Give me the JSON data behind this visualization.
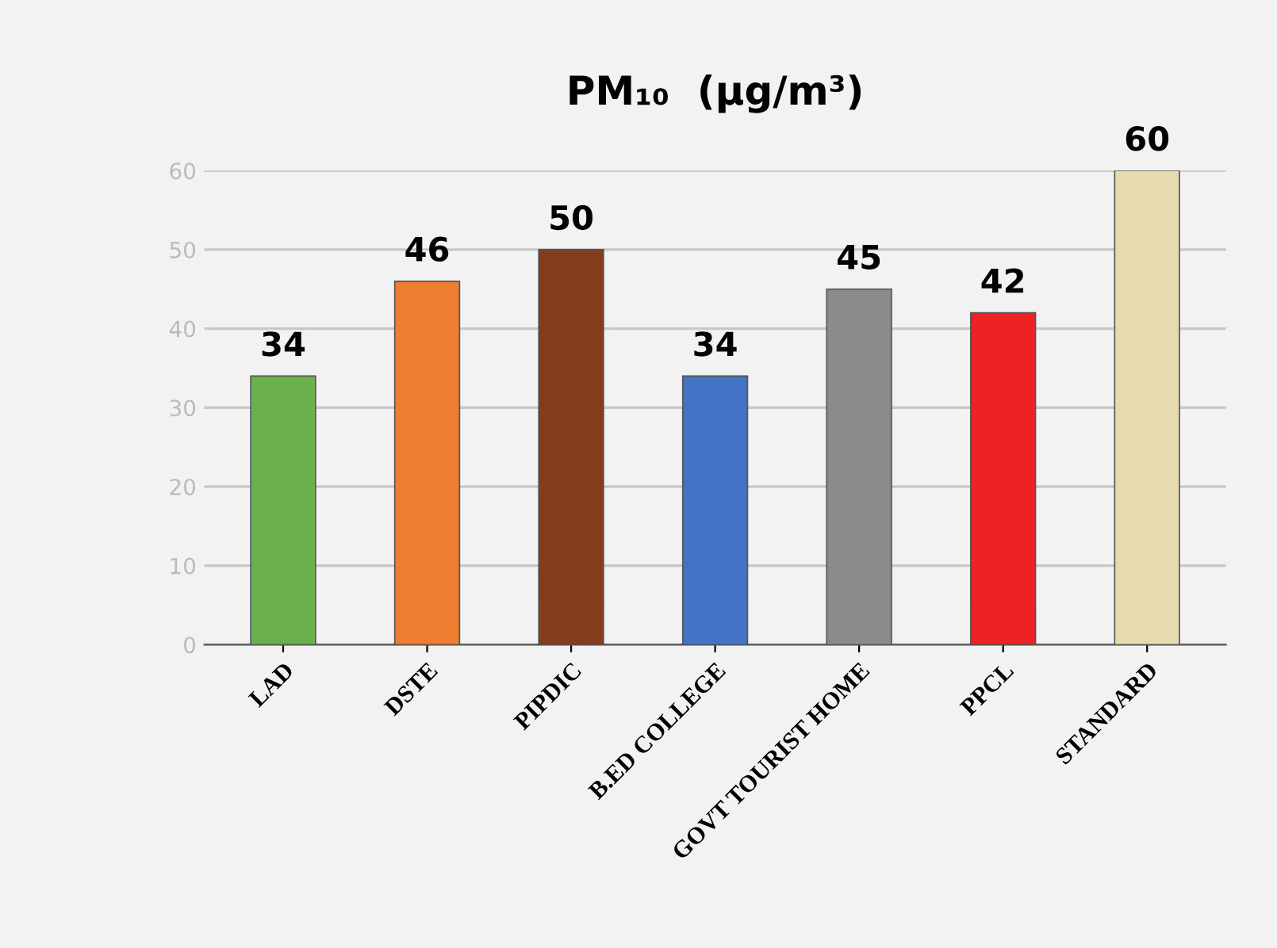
{
  "chart_data": {
    "type": "bar",
    "title": "PM₁₀  (µg/m³)",
    "categories": [
      "LAD",
      "DSTE",
      "PIPDIC",
      "B.ED COLLEGE",
      "GOVT TOURIST HOME",
      "PPCL",
      "STANDARD"
    ],
    "values": [
      34,
      46,
      50,
      34,
      45,
      42,
      60
    ],
    "colors": [
      "#6ab04c",
      "#ed7d31",
      "#843c1c",
      "#4472c4",
      "#8c8a8a",
      "#ee2222",
      "#e6dbae"
    ],
    "ylim": [
      0,
      60
    ],
    "yticks": [
      0,
      10,
      20,
      30,
      40,
      50,
      60
    ],
    "grid": "y",
    "data_labels": true
  }
}
